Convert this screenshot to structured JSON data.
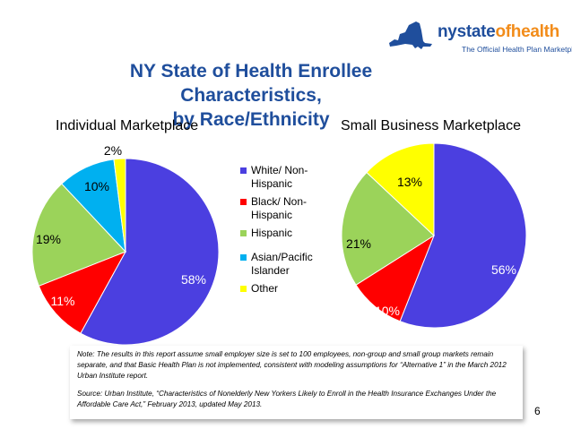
{
  "logo": {
    "brand_part1": "nystate",
    "brand_part2": "ofhealth",
    "tagline": "The Official Health Plan Marketplace"
  },
  "slide": {
    "title_line1": "NY State of Health Enrollee Characteristics,",
    "title_line2": "by Race/Ethnicity",
    "note": "Note: The results in this report assume small employer size is set to 100 employees, non-group and small group markets remain separate, and that Basic Health Plan is not implemented, consistent with modeling assumptions for “Alternative 1” in the March 2012 Urban Institute report.",
    "source": "Source: Urban Institute, “Characteristics of Nonelderly New Yorkers Likely to Enroll in the Health Insurance Exchanges Under the Affordable Care Act,” February 2013, updated May 2013.",
    "page_number": "6"
  },
  "legend": [
    {
      "label": "White/ Non-Hispanic",
      "color": "#4b3fe0"
    },
    {
      "label": "Black/ Non-Hispanic",
      "color": "#ff0000"
    },
    {
      "label": "Hispanic",
      "color": "#9bd35a"
    },
    {
      "label": "Asian/Pacific Islander",
      "color": "#00b0f0"
    },
    {
      "label": "Other",
      "color": "#ffff00"
    }
  ],
  "chart_data": [
    {
      "type": "pie",
      "title": "Individual Marketplace",
      "categories": [
        "White/ Non-Hispanic",
        "Black/ Non-Hispanic",
        "Hispanic",
        "Asian/Pacific Islander",
        "Other"
      ],
      "values": [
        58,
        11,
        19,
        10,
        2
      ],
      "value_labels": [
        "58%",
        "11%",
        "19%",
        "10%",
        "2%"
      ],
      "colors": [
        "#4b3fe0",
        "#ff0000",
        "#9bd35a",
        "#00b0f0",
        "#ffff00"
      ]
    },
    {
      "type": "pie",
      "title": "Small Business Marketplace",
      "categories": [
        "White/ Non-Hispanic",
        "Black/ Non-Hispanic",
        "Hispanic",
        "Other"
      ],
      "values": [
        56,
        10,
        21,
        13
      ],
      "value_labels": [
        "56%",
        "10%",
        "21%",
        "13%"
      ],
      "colors": [
        "#4b3fe0",
        "#ff0000",
        "#9bd35a",
        "#ffff00"
      ]
    }
  ]
}
